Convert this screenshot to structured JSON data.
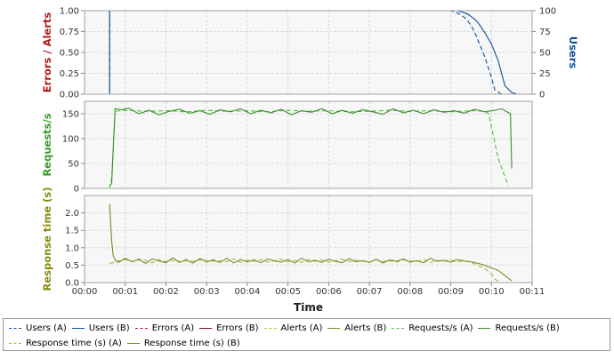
{
  "chart_data": [
    {
      "type": "line",
      "ylabel": "Errors / Alerts",
      "y2label": "Users",
      "ylim": [
        0,
        1
      ],
      "yticks": [
        "0.00",
        "0.25",
        "0.50",
        "0.75",
        "1.00"
      ],
      "y2lim": [
        0,
        100
      ],
      "y2ticks": [
        "0",
        "25",
        "50",
        "75",
        "100"
      ],
      "grid": true,
      "series": [
        {
          "name": "Users (A)",
          "axis": "right",
          "color": "#0b4f9c",
          "dash": true,
          "x": [
            0,
            37,
            37,
            540,
            548,
            555,
            560,
            565,
            570,
            575,
            580,
            590,
            600,
            605,
            615
          ],
          "y": [
            0,
            0,
            100,
            100,
            98,
            95,
            92,
            88,
            82,
            75,
            65,
            45,
            20,
            5,
            0
          ]
        },
        {
          "name": "Users (B)",
          "axis": "right",
          "color": "#0b4f9c",
          "dash": false,
          "x": [
            0,
            37,
            37,
            550,
            558,
            565,
            570,
            575,
            580,
            585,
            590,
            600,
            610,
            615,
            620,
            630,
            638
          ],
          "y": [
            0,
            0,
            100,
            100,
            98,
            96,
            93,
            90,
            86,
            80,
            74,
            60,
            40,
            25,
            10,
            2,
            0
          ]
        },
        {
          "name": "Errors (A)",
          "axis": "left",
          "color": "#b01a1a",
          "dash": true,
          "x": [
            37,
            640
          ],
          "y": [
            0,
            0
          ]
        },
        {
          "name": "Errors (B)",
          "axis": "left",
          "color": "#7a1010",
          "dash": false,
          "x": [
            37,
            640
          ],
          "y": [
            0,
            0
          ]
        }
      ]
    },
    {
      "type": "line",
      "ylabel": "Requests/s",
      "ylim": [
        0,
        175
      ],
      "yticks": [
        "0",
        "50",
        "100",
        "150"
      ],
      "grid": true,
      "series": [
        {
          "name": "Requests/s (A)",
          "color": "#4fbf3f",
          "dash": true,
          "x": [
            37,
            40,
            45,
            60,
            90,
            120,
            150,
            180,
            210,
            240,
            270,
            300,
            330,
            360,
            390,
            420,
            450,
            480,
            510,
            540,
            570,
            590,
            596,
            610,
            625
          ],
          "y": [
            0,
            20,
            155,
            157,
            155,
            156,
            154,
            157,
            155,
            156,
            154,
            157,
            155,
            156,
            154,
            155,
            157,
            155,
            156,
            154,
            156,
            155,
            150,
            60,
            5
          ]
        },
        {
          "name": "Requests/s (B)",
          "color": "#3a8f2a",
          "dash": false,
          "x": [
            37,
            40,
            45,
            55,
            65,
            80,
            95,
            110,
            125,
            140,
            155,
            170,
            185,
            200,
            215,
            230,
            245,
            260,
            275,
            290,
            305,
            320,
            335,
            350,
            365,
            380,
            395,
            410,
            425,
            440,
            455,
            470,
            485,
            500,
            515,
            530,
            545,
            560,
            575,
            590,
            605,
            615,
            628,
            630
          ],
          "y": [
            5,
            10,
            160,
            158,
            161,
            150,
            157,
            148,
            155,
            159,
            151,
            156,
            149,
            158,
            154,
            160,
            150,
            157,
            152,
            159,
            148,
            156,
            153,
            160,
            150,
            157,
            151,
            158,
            154,
            149,
            160,
            152,
            157,
            150,
            158,
            153,
            156,
            151,
            159,
            154,
            157,
            160,
            150,
            40
          ]
        }
      ]
    },
    {
      "type": "line",
      "xlabel": "Time",
      "ylabel": "Response time (s)",
      "ylim": [
        0,
        2.5
      ],
      "yticks": [
        "0.0",
        "0.5",
        "1.0",
        "1.5",
        "2.0"
      ],
      "xlim": [
        0,
        660
      ],
      "xticks": [
        "00:00",
        "00:01",
        "00:02",
        "00:03",
        "00:04",
        "00:05",
        "00:06",
        "00:07",
        "00:08",
        "00:09",
        "00:10",
        "00:11"
      ],
      "grid": true,
      "series": [
        {
          "name": "Alerts (A)",
          "color": "#c8c838",
          "dash": true,
          "x": [
            37,
            640
          ],
          "y": [
            0,
            0
          ]
        },
        {
          "name": "Alerts (B)",
          "color": "#8c8c20",
          "dash": false,
          "x": [
            37,
            640
          ],
          "y": [
            0,
            0
          ]
        },
        {
          "name": "Response time (s) (A)",
          "color": "#b0b040",
          "dash": true,
          "x": [
            37,
            45,
            50,
            60,
            70,
            80,
            90,
            100,
            110,
            120,
            130,
            140,
            150,
            160,
            170,
            180,
            190,
            200,
            210,
            220,
            230,
            240,
            250,
            260,
            270,
            280,
            290,
            300,
            310,
            320,
            330,
            340,
            350,
            360,
            370,
            380,
            390,
            400,
            410,
            420,
            430,
            440,
            450,
            460,
            470,
            480,
            490,
            500,
            510,
            520,
            530,
            540,
            550,
            560,
            570,
            580,
            590,
            600,
            605,
            612
          ],
          "y": [
            0.55,
            0.58,
            0.62,
            0.66,
            0.6,
            0.68,
            0.63,
            0.57,
            0.66,
            0.6,
            0.64,
            0.58,
            0.67,
            0.61,
            0.65,
            0.59,
            0.66,
            0.62,
            0.6,
            0.68,
            0.58,
            0.64,
            0.61,
            0.66,
            0.59,
            0.63,
            0.67,
            0.6,
            0.64,
            0.58,
            0.66,
            0.61,
            0.65,
            0.59,
            0.63,
            0.67,
            0.6,
            0.64,
            0.62,
            0.58,
            0.66,
            0.61,
            0.63,
            0.59,
            0.65,
            0.62,
            0.6,
            0.66,
            0.58,
            0.64,
            0.61,
            0.65,
            0.6,
            0.62,
            0.58,
            0.5,
            0.4,
            0.25,
            0.1,
            0.02
          ]
        },
        {
          "name": "Response time (s) (B)",
          "color": "#7a8a20",
          "dash": false,
          "x": [
            37,
            40,
            42,
            45,
            50,
            60,
            70,
            80,
            90,
            100,
            110,
            120,
            130,
            140,
            150,
            160,
            170,
            180,
            190,
            200,
            210,
            220,
            230,
            240,
            250,
            260,
            270,
            280,
            290,
            300,
            310,
            320,
            330,
            340,
            350,
            360,
            370,
            380,
            390,
            400,
            410,
            420,
            430,
            440,
            450,
            460,
            470,
            480,
            490,
            500,
            510,
            520,
            530,
            540,
            550,
            560,
            570,
            580,
            590,
            600,
            610,
            620,
            630
          ],
          "y": [
            2.25,
            1.2,
            0.8,
            0.65,
            0.58,
            0.7,
            0.6,
            0.66,
            0.55,
            0.68,
            0.62,
            0.57,
            0.71,
            0.59,
            0.64,
            0.56,
            0.69,
            0.61,
            0.63,
            0.58,
            0.7,
            0.56,
            0.66,
            0.6,
            0.65,
            0.57,
            0.68,
            0.62,
            0.59,
            0.66,
            0.56,
            0.7,
            0.6,
            0.64,
            0.58,
            0.67,
            0.61,
            0.57,
            0.69,
            0.6,
            0.63,
            0.58,
            0.67,
            0.56,
            0.65,
            0.61,
            0.68,
            0.59,
            0.63,
            0.57,
            0.7,
            0.61,
            0.64,
            0.59,
            0.66,
            0.62,
            0.6,
            0.55,
            0.5,
            0.42,
            0.35,
            0.2,
            0.05
          ]
        }
      ]
    }
  ],
  "legend": [
    [
      {
        "label": "Users (A)",
        "color": "#0b4f9c",
        "dash": true
      },
      {
        "label": "Users (B)",
        "color": "#0b4f9c",
        "dash": false
      },
      {
        "label": "Errors (A)",
        "color": "#b01a1a",
        "dash": true
      },
      {
        "label": "Errors (B)",
        "color": "#7a1010",
        "dash": false
      },
      {
        "label": "Alerts (A)",
        "color": "#c8c838",
        "dash": true
      },
      {
        "label": "Alerts (B)",
        "color": "#8c8c20",
        "dash": false
      },
      {
        "label": "Requests/s (A)",
        "color": "#4fbf3f",
        "dash": true
      },
      {
        "label": "Requests/s (B)",
        "color": "#3a8f2a",
        "dash": false
      }
    ],
    [
      {
        "label": "Response time (s) (A)",
        "color": "#b0b040",
        "dash": true
      },
      {
        "label": "Response time (s) (B)",
        "color": "#7a8a20",
        "dash": false
      }
    ]
  ],
  "colors": {
    "users_axis": "#0b4f9c",
    "errors_axis": "#b01a1a",
    "requests_axis": "#3a9a2a",
    "response_axis": "#8a8a10"
  }
}
